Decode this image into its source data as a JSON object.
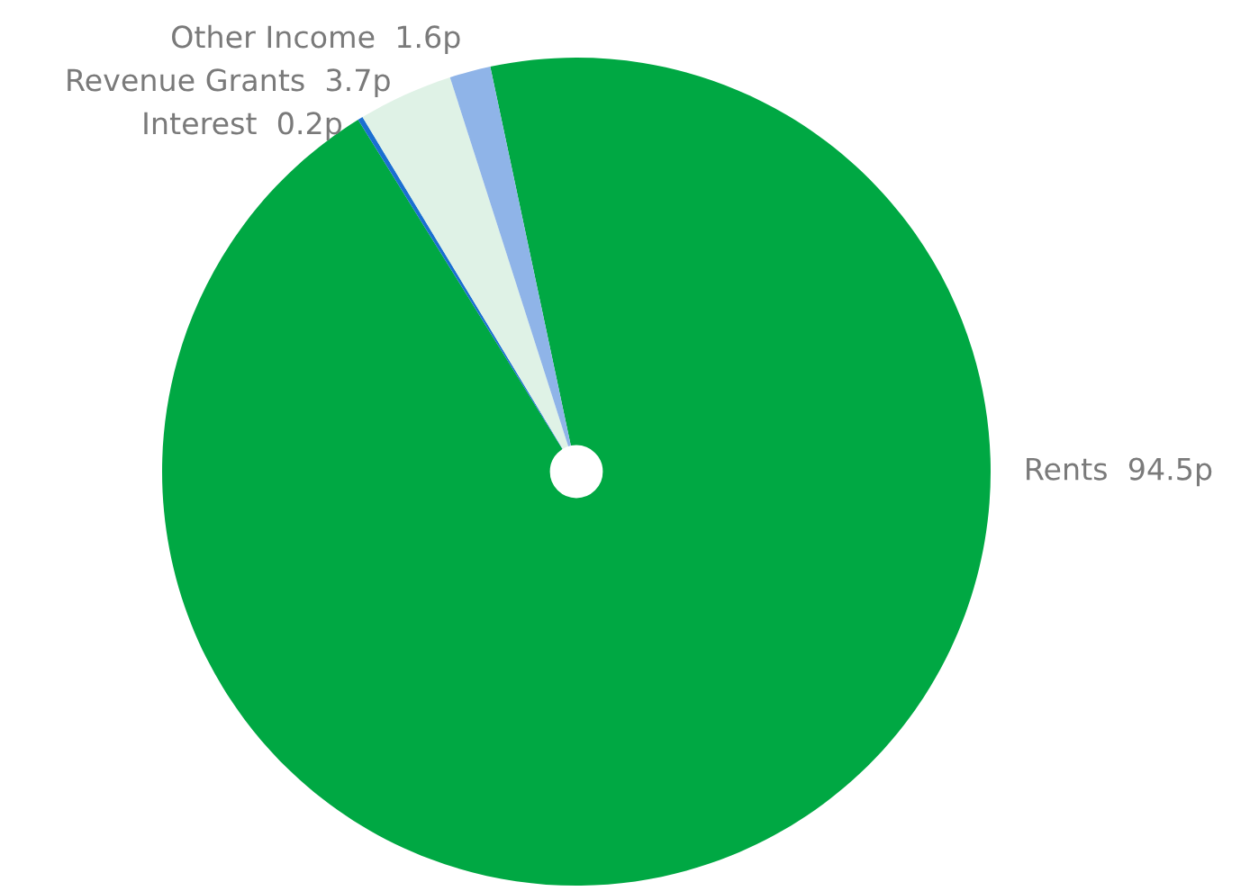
{
  "chart_data": {
    "type": "pie",
    "categories": [
      "Rents",
      "Interest",
      "Revenue Grants",
      "Other Income"
    ],
    "values": [
      94.5,
      0.2,
      3.7,
      1.6
    ],
    "value_labels": [
      "94.5p",
      "0.2p",
      "3.7p",
      "1.6p"
    ],
    "colors": [
      "#00a843",
      "#1a6fd1",
      "#dff2e6",
      "#8fb4e8"
    ]
  }
}
